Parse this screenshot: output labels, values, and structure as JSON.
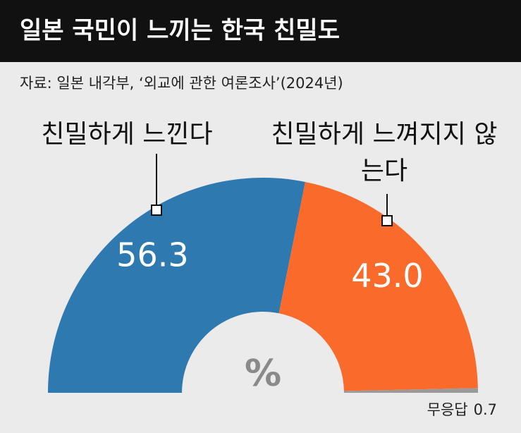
{
  "chart_data": {
    "type": "half-donut",
    "title": "일본 국민이 느끼는 한국 친밀도",
    "source": "자료: 일본 내각부, ‘외교에 관한 여론조사’(2024년)",
    "unit": "%",
    "categories": [
      "친밀하게 느낀다",
      "친밀하게 느껴지지 않는다",
      "무응답"
    ],
    "values": [
      56.3,
      43.0,
      0.7
    ],
    "value_labels": [
      "56.3",
      "43.0",
      "0.7"
    ],
    "colors": [
      "#2e79b0",
      "#f96a2b",
      "#9a9a9a"
    ]
  }
}
